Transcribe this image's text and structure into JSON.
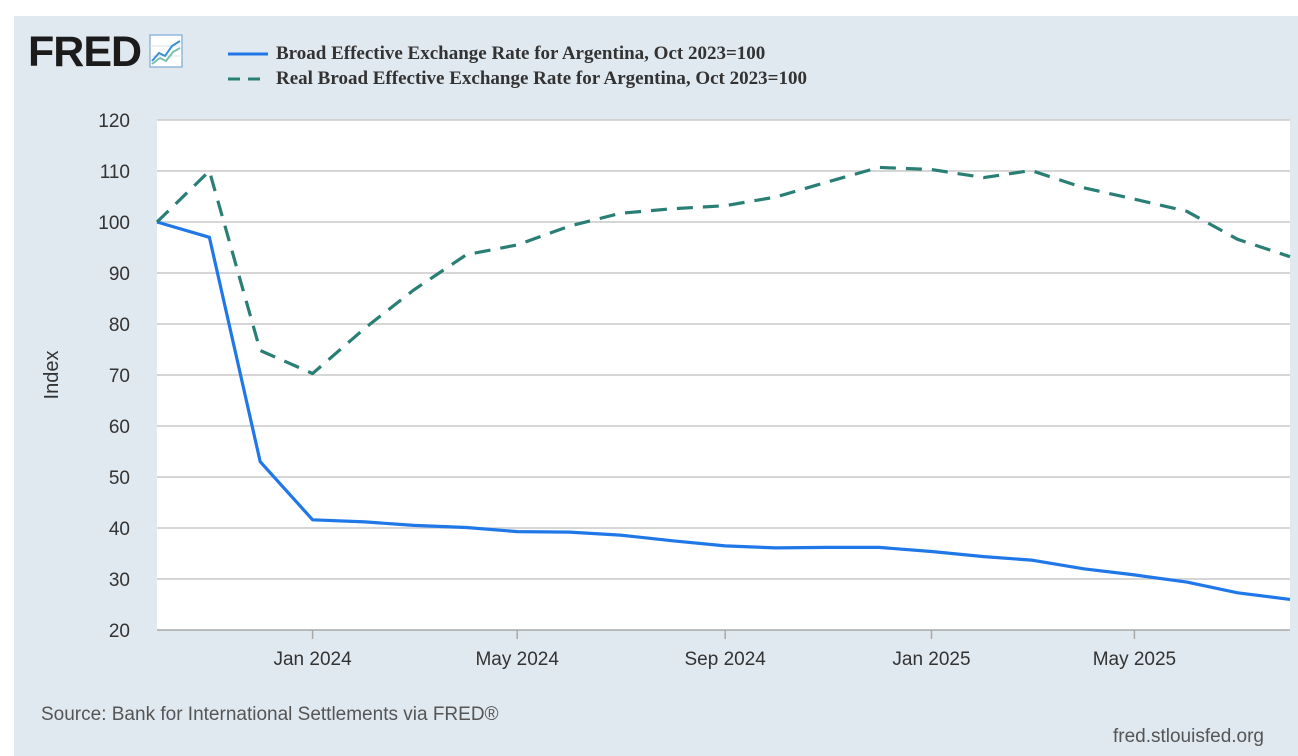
{
  "header": {
    "logo_text": "FRED",
    "logo_icon": "line-chart-icon"
  },
  "colors": {
    "background": "#e1e9f0",
    "plot_background": "#ffffff",
    "grid": "#c9c9c9",
    "series_1": "#1f77e8",
    "series_2": "#2a7f75"
  },
  "chart_data": {
    "type": "line",
    "title": "",
    "xlabel": "",
    "ylabel": "Index",
    "ylim": [
      20,
      120
    ],
    "yticks": [
      20,
      30,
      40,
      50,
      60,
      70,
      80,
      90,
      100,
      110,
      120
    ],
    "xlim": [
      "2023-10-01",
      "2025-08-01"
    ],
    "xticks": [
      {
        "date": "2024-01-01",
        "label": "Jan 2024"
      },
      {
        "date": "2024-05-01",
        "label": "May 2024"
      },
      {
        "date": "2024-09-01",
        "label": "Sep 2024"
      },
      {
        "date": "2025-01-01",
        "label": "Jan 2025"
      },
      {
        "date": "2025-05-01",
        "label": "May 2025"
      }
    ],
    "grid": true,
    "legend_position": "top-left",
    "x": [
      "2023-10-01",
      "2023-11-01",
      "2023-12-01",
      "2024-01-01",
      "2024-02-01",
      "2024-03-01",
      "2024-04-01",
      "2024-05-01",
      "2024-06-01",
      "2024-07-01",
      "2024-08-01",
      "2024-09-01",
      "2024-10-01",
      "2024-11-01",
      "2024-12-01",
      "2025-01-01",
      "2025-02-01",
      "2025-03-01",
      "2025-04-01",
      "2025-05-01",
      "2025-06-01",
      "2025-07-01",
      "2025-08-01"
    ],
    "series": [
      {
        "name": "Broad Effective Exchange Rate for Argentina, Oct 2023=100",
        "style": "solid",
        "values": [
          100,
          97,
          53,
          41.6,
          41.2,
          40.5,
          40.1,
          39.3,
          39.2,
          38.6,
          37.5,
          36.5,
          36.1,
          36.2,
          36.2,
          35.4,
          34.4,
          33.7,
          32,
          30.8,
          29.4,
          27.3,
          26
        ]
      },
      {
        "name": "Real Broad Effective Exchange Rate for Argentina, Oct 2023=100",
        "style": "dashed",
        "values": [
          100,
          110,
          74.8,
          70.3,
          79.2,
          86.7,
          93.6,
          95.5,
          99.2,
          101.7,
          102.6,
          103.2,
          104.9,
          107.9,
          110.7,
          110.3,
          108.7,
          110.1,
          106.7,
          104.5,
          102.1,
          96.6,
          93.2
        ]
      }
    ]
  },
  "footer": {
    "source": "Source: Bank for International Settlements via FRED®",
    "url": "fred.stlouisfed.org"
  }
}
